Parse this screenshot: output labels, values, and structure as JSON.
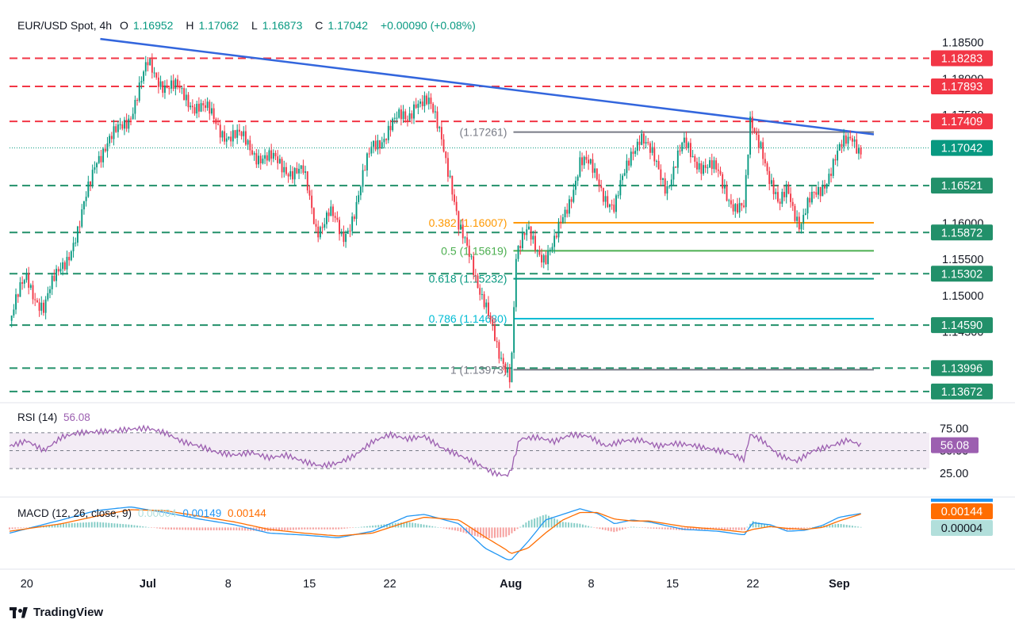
{
  "header": {
    "symbol": "EUR/USD Spot, 4h",
    "o_label": "O",
    "open": "1.16952",
    "h_label": "H",
    "high": "1.17062",
    "l_label": "L",
    "low": "1.16873",
    "c_label": "C",
    "close": "1.17042",
    "change": "+0.00090 (+0.08%)"
  },
  "colors": {
    "up": "#089981",
    "down": "#f23645",
    "trend": "#3366dd",
    "resist": "#f23645",
    "support": "#22906a",
    "fib_0382": "#ff9800",
    "fib_05": "#4caf50",
    "fib_0618": "#089981",
    "fib_0786": "#00bcd4",
    "fib_1": "#787b86",
    "rsi": "#9c5fb0",
    "macd_line": "#2196f3",
    "signal_line": "#ff6d00"
  },
  "price_axis": {
    "ticks": [
      "1.18500",
      "1.18000",
      "1.17500",
      "1.16000",
      "1.15500",
      "1.15000",
      "1.14500"
    ],
    "tick_values": [
      1.185,
      1.18,
      1.175,
      1.16,
      1.155,
      1.15,
      1.145
    ]
  },
  "levels": [
    {
      "label": "1.18283",
      "value": 1.18283,
      "kind": "resist"
    },
    {
      "label": "1.17893",
      "value": 1.17893,
      "kind": "resist"
    },
    {
      "label": "1.17409",
      "value": 1.17409,
      "kind": "resist"
    },
    {
      "label": "1.17042",
      "value": 1.17042,
      "kind": "current"
    },
    {
      "label": "1.16521",
      "value": 1.16521,
      "kind": "support"
    },
    {
      "label": "1.15872",
      "value": 1.15872,
      "kind": "support"
    },
    {
      "label": "1.15302",
      "value": 1.15302,
      "kind": "support"
    },
    {
      "label": "1.14590",
      "value": 1.1459,
      "kind": "support"
    },
    {
      "label": "1.13996",
      "value": 1.13996,
      "kind": "support"
    },
    {
      "label": "1.13672",
      "value": 1.13672,
      "kind": "support"
    }
  ],
  "fibonacci": [
    {
      "label": "(1.17261)",
      "value": 1.17261,
      "color": "#787b86"
    },
    {
      "label": "0.382 (1.16007)",
      "value": 1.16007,
      "color": "#ff9800"
    },
    {
      "label": "0.5 (1.15619)",
      "value": 1.15619,
      "color": "#4caf50"
    },
    {
      "label": "0.618 (1.15232)",
      "value": 1.15232,
      "color": "#089981"
    },
    {
      "label": "0.786 (1.14680)",
      "value": 1.1468,
      "color": "#00bcd4"
    },
    {
      "label": "1 (1.13973)",
      "value": 1.13973,
      "color": "#787b86"
    }
  ],
  "x_axis": {
    "labels": [
      "20",
      "Jul",
      "8",
      "15",
      "22",
      "Aug",
      "8",
      "15",
      "22",
      "Sep"
    ],
    "bold": [
      false,
      true,
      false,
      false,
      false,
      true,
      false,
      false,
      false,
      true
    ]
  },
  "rsi": {
    "label": "RSI (14)",
    "value": "56.08",
    "ticks": [
      "75.00",
      "50.00",
      "25.00"
    ],
    "tick_values": [
      75,
      50,
      25
    ],
    "upper": 70,
    "middle": 50,
    "lower": 30
  },
  "macd": {
    "label": "MACD (12, 26, close, 9)",
    "hist": "0.00004",
    "macd": "0.00149",
    "signal": "0.00144",
    "badge_signal": "0.00144",
    "badge_hist": "0.00004"
  },
  "brand": {
    "name": "TradingView"
  },
  "chart_data": {
    "type": "candlestick",
    "title": "EUR/USD Spot, 4h",
    "ylim": [
      1.1355,
      1.1865
    ],
    "x_range": [
      0,
      100
    ],
    "x_ticks": [
      2,
      16,
      25.3,
      34.7,
      44,
      58,
      67.3,
      76.7,
      86,
      96
    ],
    "path": [
      [
        0,
        1.1465
      ],
      [
        2,
        1.1525
      ],
      [
        4,
        1.148
      ],
      [
        6,
        1.1545
      ],
      [
        8,
        1.1585
      ],
      [
        10,
        1.1695
      ],
      [
        12,
        1.1715
      ],
      [
        14,
        1.1755
      ],
      [
        16,
        1.1815
      ],
      [
        18,
        1.1795
      ],
      [
        20,
        1.1775
      ],
      [
        22,
        1.1765
      ],
      [
        24,
        1.1735
      ],
      [
        26,
        1.172
      ],
      [
        28,
        1.1705
      ],
      [
        30,
        1.1685
      ],
      [
        32,
        1.168
      ],
      [
        34,
        1.1665
      ],
      [
        35.5,
        1.1595
      ],
      [
        37,
        1.1615
      ],
      [
        38.5,
        1.1575
      ],
      [
        40,
        1.1625
      ],
      [
        42,
        1.1705
      ],
      [
        44,
        1.1735
      ],
      [
        46,
        1.1745
      ],
      [
        47,
        1.1775
      ],
      [
        48.5,
        1.176
      ],
      [
        50,
        1.1725
      ],
      [
        51,
        1.1665
      ],
      [
        52,
        1.1585
      ],
      [
        53.5,
        1.155
      ],
      [
        55,
        1.149
      ],
      [
        56.5,
        1.1415
      ],
      [
        57.5,
        1.1405
      ],
      [
        58,
        1.1395
      ],
      [
        58.6,
        1.1555
      ],
      [
        60,
        1.1585
      ],
      [
        62,
        1.1555
      ],
      [
        63,
        1.1565
      ],
      [
        64.5,
        1.1625
      ],
      [
        66,
        1.1685
      ],
      [
        68,
        1.1665
      ],
      [
        70,
        1.1615
      ],
      [
        72,
        1.1705
      ],
      [
        73,
        1.1725
      ],
      [
        74,
        1.1695
      ],
      [
        76,
        1.1655
      ],
      [
        78,
        1.1705
      ],
      [
        80,
        1.1685
      ],
      [
        82,
        1.1665
      ],
      [
        84,
        1.1625
      ],
      [
        85,
        1.1615
      ],
      [
        85.7,
        1.1735
      ],
      [
        87,
        1.1715
      ],
      [
        88,
        1.1655
      ],
      [
        89,
        1.1615
      ],
      [
        90,
        1.1655
      ],
      [
        91.5,
        1.1595
      ],
      [
        93,
        1.1635
      ],
      [
        95,
        1.1675
      ],
      [
        96.5,
        1.1705
      ],
      [
        97.5,
        1.1725
      ],
      [
        98.5,
        1.1704
      ]
    ],
    "trendline": [
      [
        10.5,
        1.1855
      ],
      [
        100,
        1.1723
      ]
    ],
    "rsi_path": [
      [
        0,
        55
      ],
      [
        2,
        61
      ],
      [
        4,
        50
      ],
      [
        6,
        65
      ],
      [
        8,
        70
      ],
      [
        12,
        72
      ],
      [
        14,
        74
      ],
      [
        16,
        75
      ],
      [
        18,
        70
      ],
      [
        20,
        60
      ],
      [
        22,
        55
      ],
      [
        24,
        48
      ],
      [
        26,
        45
      ],
      [
        28,
        48
      ],
      [
        30,
        42
      ],
      [
        32,
        45
      ],
      [
        34,
        38
      ],
      [
        36,
        33
      ],
      [
        38,
        36
      ],
      [
        40,
        45
      ],
      [
        42,
        60
      ],
      [
        44,
        68
      ],
      [
        46,
        63
      ],
      [
        48,
        66
      ],
      [
        50,
        53
      ],
      [
        52,
        45
      ],
      [
        54,
        36
      ],
      [
        56,
        25
      ],
      [
        57.5,
        22
      ],
      [
        58,
        27
      ],
      [
        59,
        63
      ],
      [
        61,
        65
      ],
      [
        63,
        60
      ],
      [
        65,
        68
      ],
      [
        67,
        66
      ],
      [
        69,
        55
      ],
      [
        71,
        61
      ],
      [
        73,
        62
      ],
      [
        75,
        55
      ],
      [
        77,
        58
      ],
      [
        79,
        56
      ],
      [
        81,
        52
      ],
      [
        83,
        48
      ],
      [
        85,
        40
      ],
      [
        85.7,
        68
      ],
      [
        87,
        62
      ],
      [
        89,
        45
      ],
      [
        91,
        38
      ],
      [
        93,
        50
      ],
      [
        95,
        55
      ],
      [
        97,
        62
      ],
      [
        98.5,
        56
      ]
    ],
    "macd_path": [
      [
        0,
        -0.0006
      ],
      [
        6,
        0.0008
      ],
      [
        10,
        0.0018
      ],
      [
        14,
        0.0022
      ],
      [
        18,
        0.0016
      ],
      [
        22,
        0.0009
      ],
      [
        26,
        0.0003
      ],
      [
        30,
        -0.0006
      ],
      [
        34,
        -0.0008
      ],
      [
        38,
        -0.0011
      ],
      [
        42,
        -0.0004
      ],
      [
        46,
        0.0012
      ],
      [
        48,
        0.0014
      ],
      [
        52,
        0.0004
      ],
      [
        55,
        -0.0022
      ],
      [
        57.5,
        -0.0034
      ],
      [
        58,
        -0.0035
      ],
      [
        60,
        -0.0015
      ],
      [
        62,
        0.0008
      ],
      [
        64,
        0.0014
      ],
      [
        66,
        0.002
      ],
      [
        68,
        0.0015
      ],
      [
        70,
        0.0004
      ],
      [
        72,
        0.0008
      ],
      [
        74,
        0.0006
      ],
      [
        76,
        0.0002
      ],
      [
        78,
        -0.0002
      ],
      [
        82,
        -0.0004
      ],
      [
        85,
        -0.0008
      ],
      [
        86,
        0.0005
      ],
      [
        88,
        0.0003
      ],
      [
        90,
        -0.0004
      ],
      [
        92,
        -0.0003
      ],
      [
        94,
        0.0002
      ],
      [
        96,
        0.0011
      ],
      [
        98.5,
        0.00149
      ]
    ],
    "signal_path": [
      [
        0,
        -0.0004
      ],
      [
        6,
        0.0004
      ],
      [
        10,
        0.0012
      ],
      [
        14,
        0.0019
      ],
      [
        18,
        0.0018
      ],
      [
        22,
        0.0012
      ],
      [
        26,
        0.0006
      ],
      [
        30,
        -0.0002
      ],
      [
        34,
        -0.0006
      ],
      [
        38,
        -0.0009
      ],
      [
        42,
        -0.0006
      ],
      [
        46,
        0.0006
      ],
      [
        48,
        0.0011
      ],
      [
        52,
        0.0008
      ],
      [
        55,
        -0.001
      ],
      [
        57.5,
        -0.0024
      ],
      [
        58,
        -0.0028
      ],
      [
        60,
        -0.0022
      ],
      [
        62,
        -0.0006
      ],
      [
        64,
        0.0008
      ],
      [
        66,
        0.0016
      ],
      [
        68,
        0.0016
      ],
      [
        70,
        0.0009
      ],
      [
        72,
        0.0007
      ],
      [
        74,
        0.0007
      ],
      [
        76,
        0.0004
      ],
      [
        78,
        0.0001
      ],
      [
        82,
        -0.0002
      ],
      [
        85,
        -0.0005
      ],
      [
        86,
        -0.0002
      ],
      [
        88,
        0.0001
      ],
      [
        90,
        -0.0001
      ],
      [
        92,
        -0.0002
      ],
      [
        94,
        0.0
      ],
      [
        96,
        0.0007
      ],
      [
        98.5,
        0.00144
      ]
    ],
    "macd_ylim": [
      -0.0042,
      0.003
    ]
  }
}
